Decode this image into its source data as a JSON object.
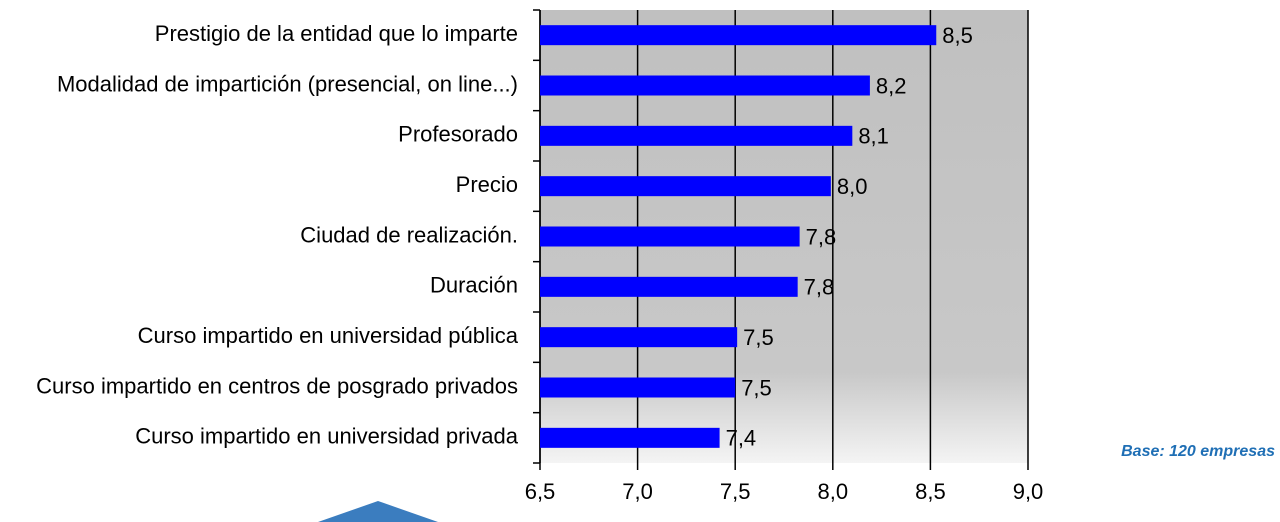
{
  "chart_data": {
    "type": "bar",
    "orientation": "horizontal",
    "categories": [
      "Prestigio de la entidad que lo imparte",
      "Modalidad de impartición (presencial, on line...)",
      "Profesorado",
      "Precio",
      "Ciudad de realización.",
      "Duración",
      "Curso impartido en universidad pública",
      "Curso impartido en centros de posgrado privados",
      "Curso impartido en universidad privada"
    ],
    "values": [
      8.53,
      8.19,
      8.1,
      7.99,
      7.83,
      7.82,
      7.51,
      7.5,
      7.42
    ],
    "value_labels": [
      "8,5",
      "8,2",
      "8,1",
      "8,0",
      "7,8",
      "7,8",
      "7,5",
      "7,5",
      "7,4"
    ],
    "color": "#0000ff",
    "xlim": [
      6.5,
      9.0
    ],
    "xticks": [
      {
        "value": 6.5,
        "label": "6,5"
      },
      {
        "value": 7.0,
        "label": "7,0"
      },
      {
        "value": 7.5,
        "label": "7,5"
      },
      {
        "value": 8.0,
        "label": "8,0"
      },
      {
        "value": 8.5,
        "label": "8,5"
      },
      {
        "value": 9.0,
        "label": "9,0"
      }
    ],
    "grid": true,
    "annotation": "Base: 120 empresas"
  }
}
